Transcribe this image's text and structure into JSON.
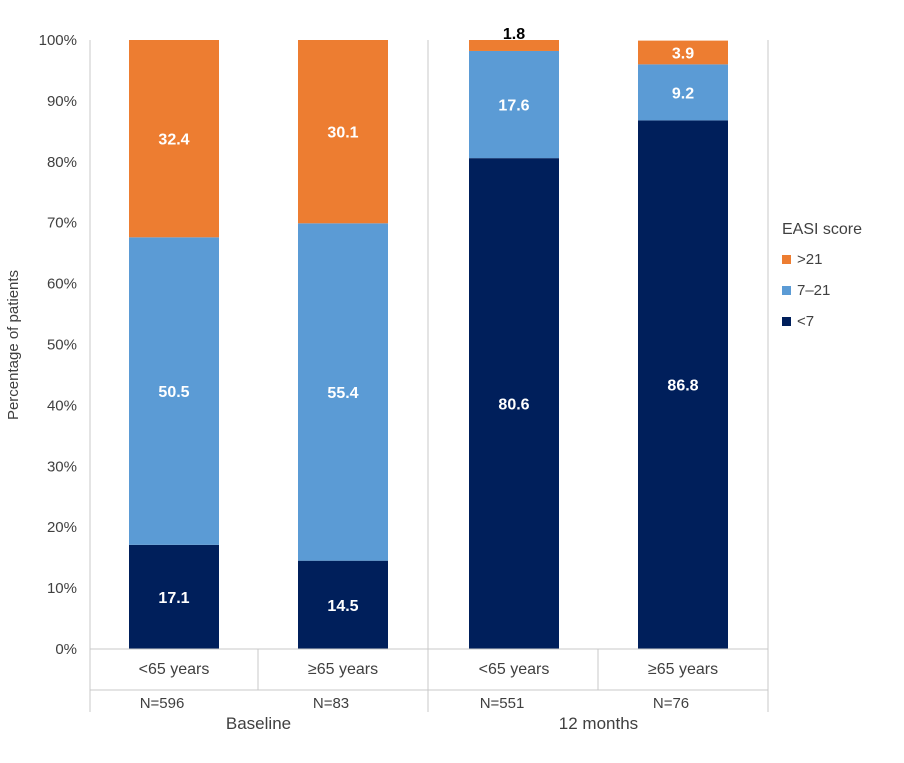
{
  "chart_data": {
    "type": "bar",
    "stacked": true,
    "ylabel": "Percentage of patients",
    "ylim": [
      0,
      100
    ],
    "yticks": [
      "0%",
      "10%",
      "20%",
      "30%",
      "40%",
      "50%",
      "60%",
      "70%",
      "80%",
      "90%",
      "100%"
    ],
    "categories": [
      "<65 years",
      "≥65 years",
      "<65 years",
      "≥65 years"
    ],
    "n_labels": [
      "N=596",
      "N=83",
      "N=551",
      "N=76"
    ],
    "groups": [
      {
        "label": "Baseline",
        "categories": [
          0,
          1
        ]
      },
      {
        "label": "12 months",
        "categories": [
          2,
          3
        ]
      }
    ],
    "legend": {
      "title": "EASI score",
      "position": "right"
    },
    "series": [
      {
        "name": "<7",
        "color": "#001F5B",
        "values": [
          17.1,
          14.5,
          80.6,
          86.8
        ]
      },
      {
        "name": "7–21",
        "color": "#5B9BD5",
        "values": [
          50.5,
          55.4,
          17.6,
          9.2
        ]
      },
      {
        "name": ">21",
        "color": "#ED7D31",
        "values": [
          32.4,
          30.1,
          1.8,
          3.9
        ]
      }
    ],
    "data_labels": [
      [
        "17.1",
        "14.5",
        "80.6",
        "86.8"
      ],
      [
        "50.5",
        "55.4",
        "17.6",
        "9.2"
      ],
      [
        "32.4",
        "30.1",
        "1.8",
        "3.9"
      ]
    ],
    "label_colors": [
      [
        "#ffffff",
        "#ffffff",
        "#ffffff",
        "#ffffff"
      ],
      [
        "#ffffff",
        "#ffffff",
        "#ffffff",
        "#ffffff"
      ],
      [
        "#ffffff",
        "#ffffff",
        "#000000",
        "#ffffff"
      ]
    ]
  }
}
